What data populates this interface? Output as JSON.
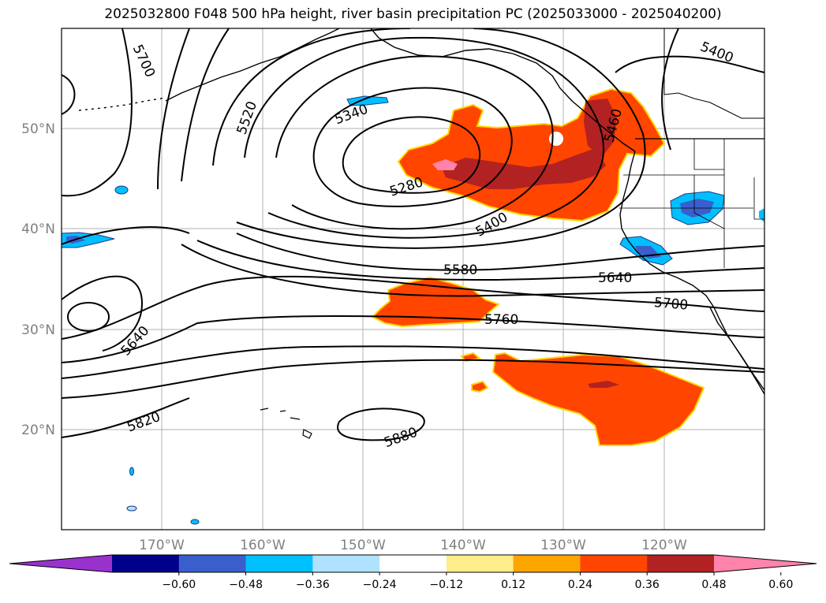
{
  "title": "2025032800 F048 500 hPa height, river basin precipitation PC (2025033000 - 2025040200)",
  "map": {
    "lon_range": [
      -180,
      -110
    ],
    "lat_range": [
      10,
      60
    ],
    "lat_ticks": [
      {
        "value": 20,
        "label": "20°N"
      },
      {
        "value": 30,
        "label": "30°N"
      },
      {
        "value": 40,
        "label": "40°N"
      },
      {
        "value": 50,
        "label": "50°N"
      }
    ],
    "lon_ticks": [
      {
        "value": -170,
        "label": "170°W"
      },
      {
        "value": -160,
        "label": "160°W"
      },
      {
        "value": -150,
        "label": "150°W"
      },
      {
        "value": -140,
        "label": "140°W"
      },
      {
        "value": -130,
        "label": "130°W"
      },
      {
        "value": -120,
        "label": "120°W"
      }
    ],
    "gridlines": true,
    "contour_labels": [
      "5700",
      "5520",
      "5340",
      "5280",
      "5400",
      "5580",
      "5640",
      "5700",
      "5760",
      "5640",
      "5820",
      "5880",
      "5400",
      "5460"
    ]
  },
  "colorbar": {
    "colors": [
      "#9932cc",
      "#00008b",
      "#3a5fcd",
      "#00bfff",
      "#b0e2ff",
      "#ffffff",
      "#ffec8b",
      "#ffa500",
      "#ff4500",
      "#b22222",
      "#ff83aa"
    ],
    "labels": [
      "−0.60",
      "−0.48",
      "−0.36",
      "−0.24",
      "−0.12",
      "0.12",
      "0.24",
      "0.36",
      "0.48",
      "0.60"
    ]
  }
}
